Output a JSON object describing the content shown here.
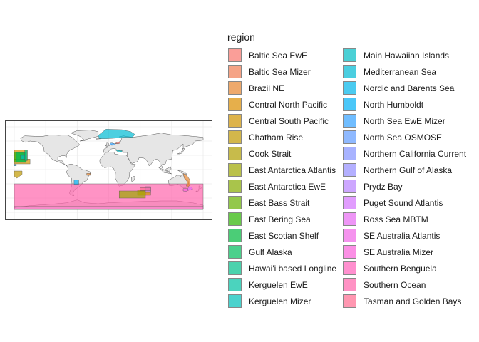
{
  "legend": {
    "title": "region",
    "items": [
      {
        "label": "Baltic Sea EwE",
        "color": "#F8766D"
      },
      {
        "label": "Baltic Sea Mizer",
        "color": "#F27D53"
      },
      {
        "label": "Brazil NE",
        "color": "#E8862F"
      },
      {
        "label": "Central North Pacific",
        "color": "#DC8E00"
      },
      {
        "label": "Central South Pacific",
        "color": "#D09400"
      },
      {
        "label": "Chatham Rise",
        "color": "#C19A00"
      },
      {
        "label": "Cook Strait",
        "color": "#B09F00"
      },
      {
        "label": "East Antarctica Atlantis",
        "color": "#9DA700"
      },
      {
        "label": "East Antarctica EwE",
        "color": "#86AC00"
      },
      {
        "label": "East Bass Strait",
        "color": "#66B100"
      },
      {
        "label": "East Bering Sea",
        "color": "#2AB400"
      },
      {
        "label": "East Scotian Shelf",
        "color": "#00B93E"
      },
      {
        "label": "Gulf Alaska",
        "color": "#00BD5C"
      },
      {
        "label": "Hawai'i based Longline",
        "color": "#00C08B"
      },
      {
        "label": "Kerguelen EwE",
        "color": "#00C1A3"
      },
      {
        "label": "Kerguelen Mizer",
        "color": "#00C0B8"
      },
      {
        "label": "Main Hawaiian Islands",
        "color": "#00BDC4"
      },
      {
        "label": "Mediterranean Sea",
        "color": "#00BAD3"
      },
      {
        "label": "Nordic and Barents Sea",
        "color": "#00B6EB"
      },
      {
        "label": "North Humboldt",
        "color": "#00B0F6"
      },
      {
        "label": "North Sea EwE Mizer",
        "color": "#35A2FF"
      },
      {
        "label": "North Sea OSMOSE",
        "color": "#619CFF"
      },
      {
        "label": "Northern California Current",
        "color": "#8494FF"
      },
      {
        "label": "Northern Gulf of Alaska",
        "color": "#9590FF"
      },
      {
        "label": "Prydz Bay",
        "color": "#B983FF"
      },
      {
        "label": "Puget Sound Atlantis",
        "color": "#D575FE"
      },
      {
        "label": "Ross Sea MBTM",
        "color": "#E76BF3"
      },
      {
        "label": "SE Australia Atlantis",
        "color": "#F166E8"
      },
      {
        "label": "SE Australia Mizer",
        "color": "#FA62DB"
      },
      {
        "label": "Southern Benguela",
        "color": "#FF62BC"
      },
      {
        "label": "Southern Ocean",
        "color": "#FF65AC"
      },
      {
        "label": "Tasman and Golden Bays",
        "color": "#FF6C91"
      }
    ]
  },
  "map": {
    "land_color": "#E6E6E6",
    "border_color": "#555555",
    "grid_color": "#EBEBEB",
    "fill_opacity": 0.7
  }
}
